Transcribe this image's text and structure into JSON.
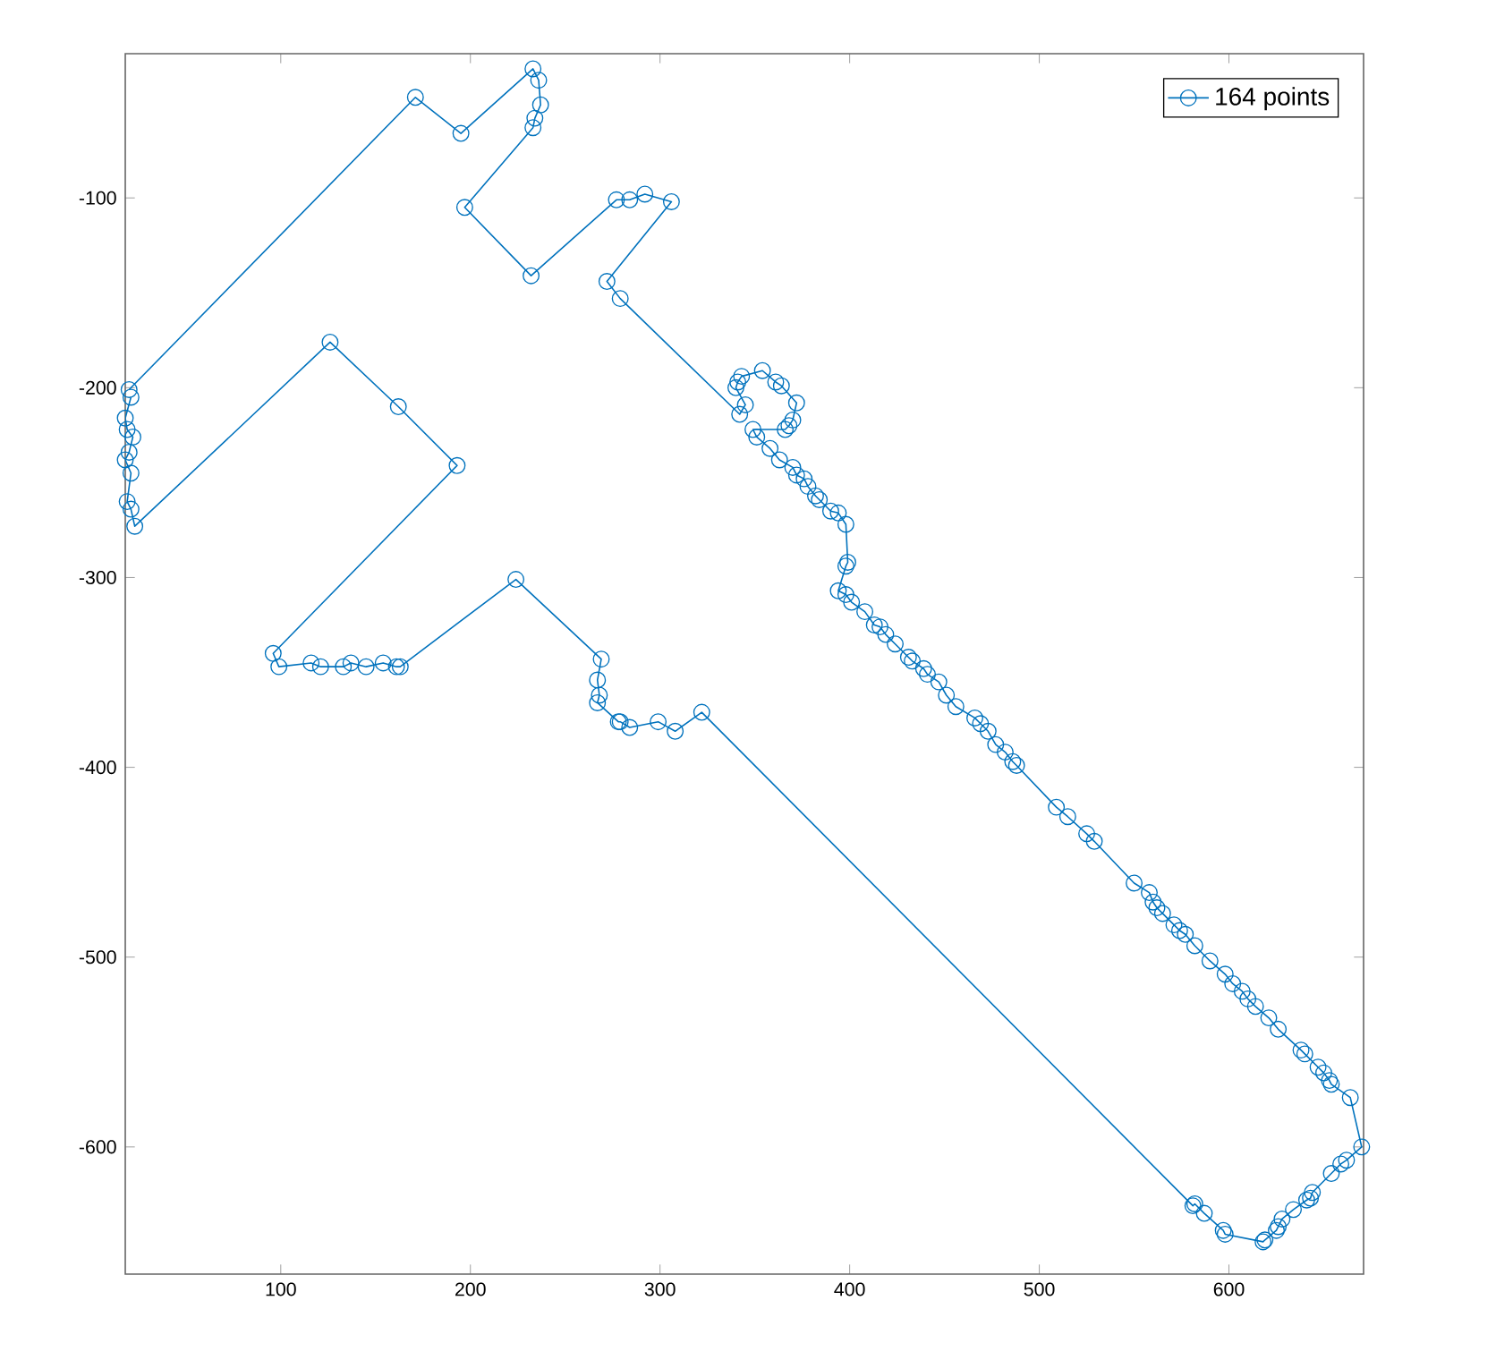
{
  "chart_data": {
    "type": "line",
    "marker": "circle",
    "line_style": "solid",
    "legend": "top right",
    "grid": false,
    "xlim": [
      18,
      671
    ],
    "ylim": [
      -667,
      -24
    ],
    "xticks": [
      100,
      200,
      300,
      400,
      500,
      600
    ],
    "yticks": [
      -600,
      -500,
      -400,
      -300,
      -200,
      -100
    ],
    "series": [
      {
        "name": "164 points",
        "color": "#0072bd",
        "x": [
          20,
          171,
          195,
          233,
          236,
          237,
          234,
          233,
          197,
          232,
          277,
          284,
          292,
          306,
          272,
          279,
          342,
          345,
          340,
          341,
          343,
          354,
          361,
          364,
          372,
          370,
          368,
          366,
          349,
          351,
          358,
          363,
          370,
          372,
          376,
          378,
          382,
          384,
          390,
          394,
          398,
          399,
          398,
          394,
          398,
          401,
          408,
          413,
          416,
          419,
          424,
          431,
          433,
          439,
          441,
          447,
          451,
          456,
          466,
          469,
          473,
          477,
          482,
          486,
          488,
          509,
          515,
          525,
          529,
          550,
          558,
          560,
          562,
          565,
          571,
          574,
          577,
          582,
          590,
          598,
          602,
          607,
          610,
          614,
          621,
          626,
          638,
          640,
          647,
          650,
          653,
          654,
          664,
          670,
          662,
          659,
          654,
          644,
          643,
          641,
          634,
          628,
          626,
          625,
          619,
          618,
          598,
          597,
          587,
          582,
          581,
          322,
          308,
          299,
          284,
          279,
          278,
          267,
          268,
          267,
          269,
          224,
          163,
          161,
          154,
          145,
          137,
          133,
          121,
          116,
          99,
          96,
          193,
          162,
          126,
          23,
          21,
          19,
          21,
          18,
          20,
          22,
          19,
          18,
          21
        ],
        "values": [
          -201,
          -47,
          -66,
          -32,
          -38,
          -51,
          -58,
          -63,
          -105,
          -141,
          -101,
          -101,
          -98,
          -102,
          -144,
          -153,
          -214,
          -209,
          -200,
          -197,
          -194,
          -191,
          -197,
          -199,
          -208,
          -217,
          -220,
          -222,
          -222,
          -226,
          -232,
          -238,
          -242,
          -246,
          -248,
          -252,
          -257,
          -259,
          -265,
          -266,
          -272,
          -292,
          -294,
          -307,
          -309,
          -313,
          -318,
          -325,
          -326,
          -330,
          -335,
          -342,
          -344,
          -348,
          -351,
          -355,
          -362,
          -368,
          -374,
          -377,
          -381,
          -388,
          -392,
          -397,
          -399,
          -421,
          -426,
          -435,
          -439,
          -461,
          -466,
          -471,
          -474,
          -477,
          -483,
          -486,
          -488,
          -494,
          -502,
          -509,
          -514,
          -518,
          -522,
          -526,
          -532,
          -538,
          -549,
          -551,
          -558,
          -561,
          -565,
          -567,
          -574,
          -600,
          -607,
          -609,
          -614,
          -624,
          -627,
          -628,
          -633,
          -638,
          -642,
          -644,
          -649,
          -650,
          -646,
          -644,
          -635,
          -630,
          -631,
          -371,
          -381,
          -376,
          -379,
          -376,
          -376,
          -366,
          -362,
          -354,
          -343,
          -301,
          -347,
          -347,
          -345,
          -347,
          -345,
          -347,
          -347,
          -345,
          -347,
          -340,
          -241,
          -210,
          -176,
          -273,
          -264,
          -260,
          -245,
          -238,
          -234,
          -226,
          -222,
          -216,
          -205
        ]
      }
    ]
  }
}
